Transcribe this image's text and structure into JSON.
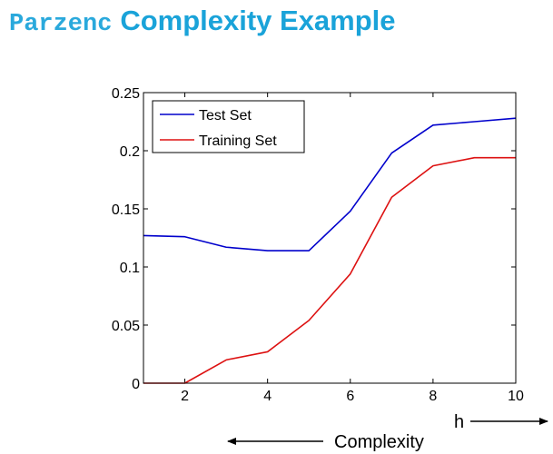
{
  "title": {
    "prefix": "Parzenc",
    "main": "Complexity Example"
  },
  "chart_data": {
    "type": "line",
    "x": [
      1,
      2,
      3,
      4,
      5,
      6,
      7,
      8,
      9,
      10
    ],
    "series": [
      {
        "name": "Test Set",
        "color": "#0000cc",
        "values": [
          0.127,
          0.126,
          0.117,
          0.114,
          0.114,
          0.148,
          0.198,
          0.222,
          0.225,
          0.228
        ]
      },
      {
        "name": "Training Set",
        "color": "#dd1111",
        "values": [
          0.0,
          0.0,
          0.02,
          0.027,
          0.054,
          0.094,
          0.16,
          0.187,
          0.194,
          0.194
        ]
      }
    ],
    "xlim": [
      1,
      10
    ],
    "ylim": [
      0,
      0.25
    ],
    "xticks": [
      2,
      4,
      6,
      8,
      10
    ],
    "yticks": [
      0,
      0.05,
      0.1,
      0.15,
      0.2,
      0.25
    ],
    "yticklabels": [
      "0",
      "0.05",
      "0.1",
      "0.15",
      "0.2",
      "0.25"
    ],
    "legend": "top-left",
    "grid": false
  },
  "annotations": {
    "h_label": "h",
    "complexity_label": "Complexity"
  }
}
